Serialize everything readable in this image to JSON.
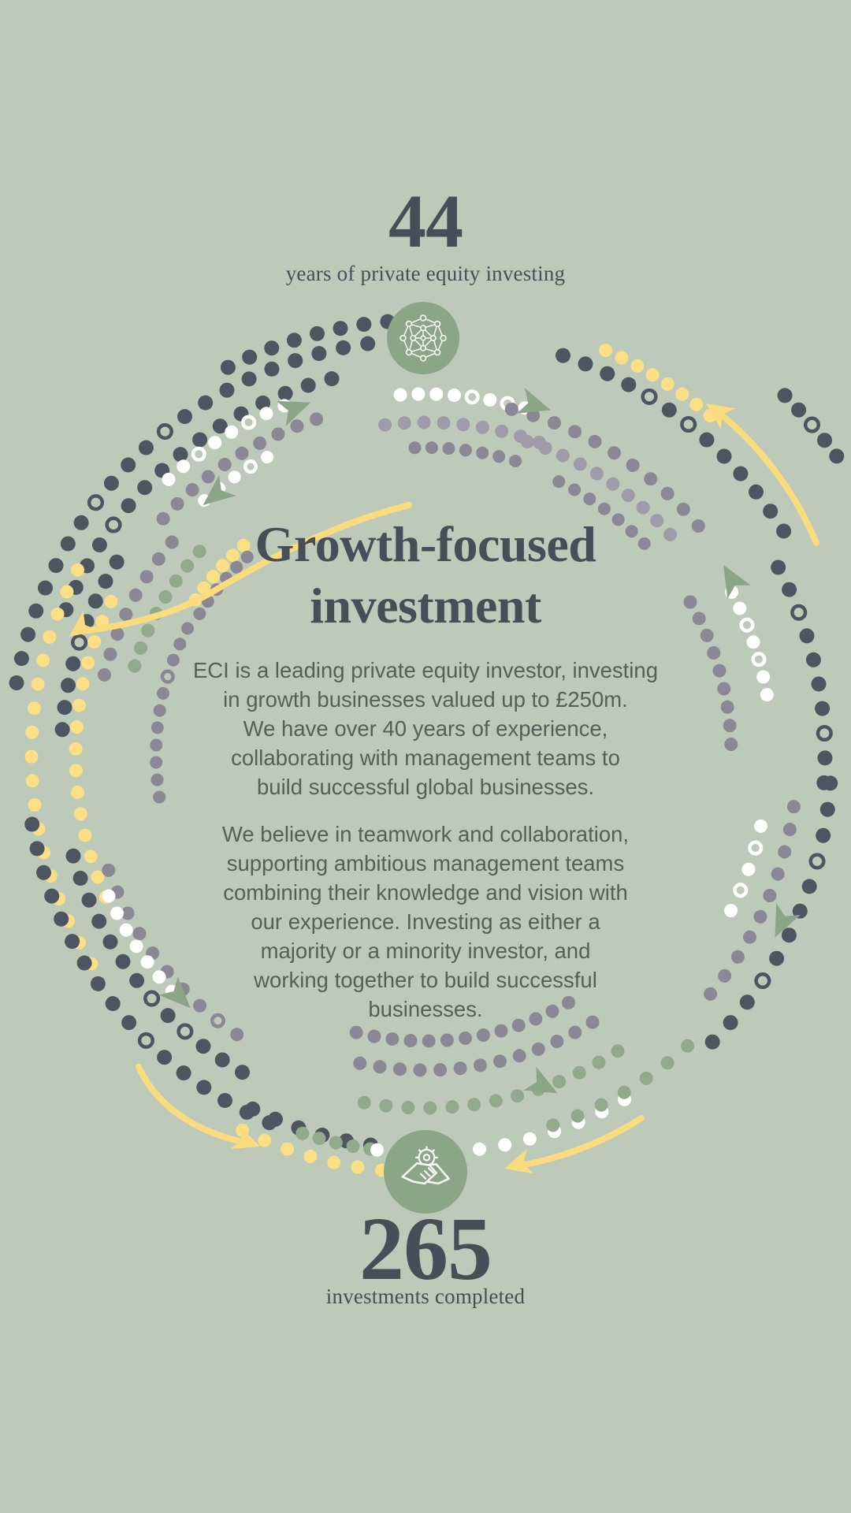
{
  "stat_top": {
    "value": "44",
    "label": "years of private equity investing"
  },
  "heading": "Growth-focused\ninvestment",
  "paragraphs": {
    "p1": "ECI is a leading private equity investor, investing\nin growth businesses valued up to £250m.\nWe have over 40 years of experience,\ncollaborating with management teams to\nbuild successful global businesses.",
    "p2": "We believe in teamwork and collaboration,\nsupporting ambitious management teams\ncombining their knowledge and vision with\nour experience. Investing as either a\nmajority or a minority investor, and\nworking together to build successful\nbusinesses."
  },
  "stat_bottom": {
    "value": "265",
    "label": "investments completed"
  },
  "icons": {
    "top": "network-icon",
    "bottom": "handshake-icon"
  },
  "colors": {
    "background": "#bdcaba",
    "heading_ink": "#474e58",
    "body_ink": "#546058",
    "dot_dark": "#4d5560",
    "dot_gray": "#8b8794",
    "dot_gray_light": "#9f9ba9",
    "dot_sage": "#90aa8b",
    "dot_white": "#ffffff",
    "dot_yellow": "#fbdf85",
    "badge_fill": "#8ba587",
    "icon_stroke": "#f7faf4",
    "arrow_yellow": "#fadc7e",
    "triangle_sage": "#8ba587"
  }
}
